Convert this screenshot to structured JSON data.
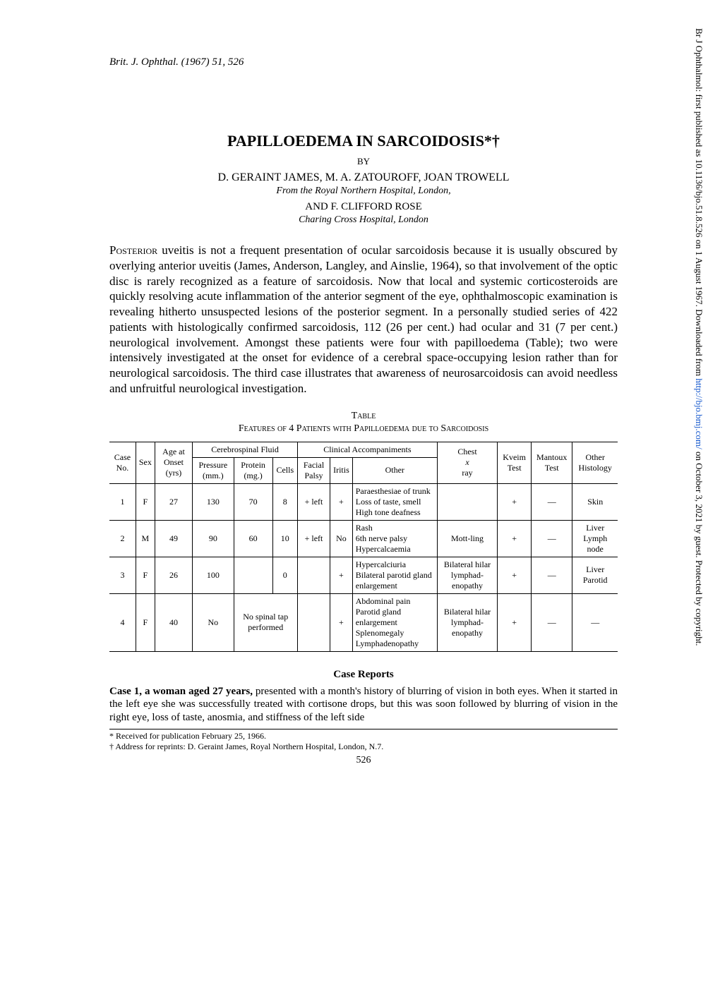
{
  "journal_ref": "Brit. J. Ophthal. (1967) 51, 526",
  "title": "PAPILLOEDEMA IN SARCOIDOSIS*†",
  "by": "BY",
  "authors_line1": "D. GERAINT JAMES, M. A. ZATOUROFF, JOAN TROWELL",
  "affiliation1": "From the Royal Northern Hospital, London,",
  "and_author": "AND F. CLIFFORD ROSE",
  "affiliation2": "Charing Cross Hospital, London",
  "body_paragraph": "Posterior uveitis is not a frequent presentation of ocular sarcoidosis because it is usually obscured by overlying anterior uveitis (James, Anderson, Langley, and Ainslie, 1964), so that involvement of the optic disc is rarely recognized as a feature of sarcoidosis. Now that local and systemic corticosteroids are quickly resolving acute inflammation of the anterior segment of the eye, ophthalmoscopic examination is revealing hitherto unsuspected lesions of the posterior segment. In a personally studied series of 422 patients with histologically confirmed sarcoidosis, 112 (26 per cent.) had ocular and 31 (7 per cent.) neurological involvement. Amongst these patients were four with papilloedema (Table); two were intensively investigated at the onset for evidence of a cerebral space-occupying lesion rather than for neurological sarcoidosis. The third case illustrates that awareness of neurosarcoidosis can avoid needless and unfruitful neurological investigation.",
  "table": {
    "label": "Table",
    "title": "Features of 4 Patients with Papilloedema due to Sarcoidosis",
    "group_headers": {
      "csf": "Cerebrospinal Fluid",
      "clinical": "Clinical Accompaniments"
    },
    "columns": {
      "case_no": "Case No.",
      "sex": "Sex",
      "age": "Age at Onset (yrs)",
      "pressure": "Pressure (mm.)",
      "protein": "Protein (mg.)",
      "cells": "Cells",
      "facial": "Facial Palsy",
      "iritis": "Iritis",
      "other_clin": "Other",
      "chest": "Chest x ray",
      "kveim": "Kveim Test",
      "mantoux": "Mantoux Test",
      "histology": "Other Histology"
    },
    "rows": [
      {
        "case_no": "1",
        "sex": "F",
        "age": "27",
        "pressure": "130",
        "protein": "70",
        "cells": "8",
        "facial": "+ left",
        "iritis": "+",
        "other_clin": "Paraesthesiae of trunk\nLoss of taste, smell\nHigh tone deafness",
        "chest": "",
        "kveim": "+",
        "mantoux": "—",
        "histology": "Skin"
      },
      {
        "case_no": "2",
        "sex": "M",
        "age": "49",
        "pressure": "90",
        "protein": "60",
        "cells": "10",
        "facial": "+ left",
        "iritis": "No",
        "other_clin": "Rash\n6th nerve palsy\nHypercalcaemia",
        "chest": "Mott-ling",
        "kveim": "+",
        "mantoux": "—",
        "histology": "Liver\nLymph node"
      },
      {
        "case_no": "3",
        "sex": "F",
        "age": "26",
        "pressure": "100",
        "protein": "",
        "cells": "0",
        "facial": "",
        "iritis": "+",
        "other_clin": "Hypercalciuria\nBilateral parotid gland enlargement",
        "chest": "Bilateral hilar lymphad-enopathy",
        "kveim": "+",
        "mantoux": "—",
        "histology": "Liver\nParotid"
      },
      {
        "case_no": "4",
        "sex": "F",
        "age": "40",
        "pressure": "No",
        "no_tap": "No spinal tap performed",
        "facial": "",
        "iritis": "+",
        "other_clin": "Abdominal pain\nParotid gland enlargement\nSplenomegaly\nLymphadenopathy",
        "chest": "Bilateral hilar lymphad-enopathy",
        "kveim": "+",
        "mantoux": "—",
        "histology": "—"
      }
    ]
  },
  "case_reports_heading": "Case Reports",
  "case1_text": "Case 1, a woman aged 27 years, presented with a month's history of blurring of vision in both eyes. When it started in the left eye she was successfully treated with cortisone drops, but this was soon followed by blurring of vision in the right eye, loss of taste, anosmia, and stiffness of the left side",
  "footnote1": "* Received for publication February 25, 1966.",
  "footnote2": "† Address for reprints: D. Geraint James, Royal Northern Hospital, London, N.7.",
  "page_number": "526",
  "side_text_pre": "Br J Ophthalmol: first published as 10.1136/bjo.51.8.526 on 1 August 1967. Downloaded from ",
  "side_text_link": "http://bjo.bmj.com/",
  "side_text_post": " on October 3, 2021 by guest. Protected by copyright."
}
